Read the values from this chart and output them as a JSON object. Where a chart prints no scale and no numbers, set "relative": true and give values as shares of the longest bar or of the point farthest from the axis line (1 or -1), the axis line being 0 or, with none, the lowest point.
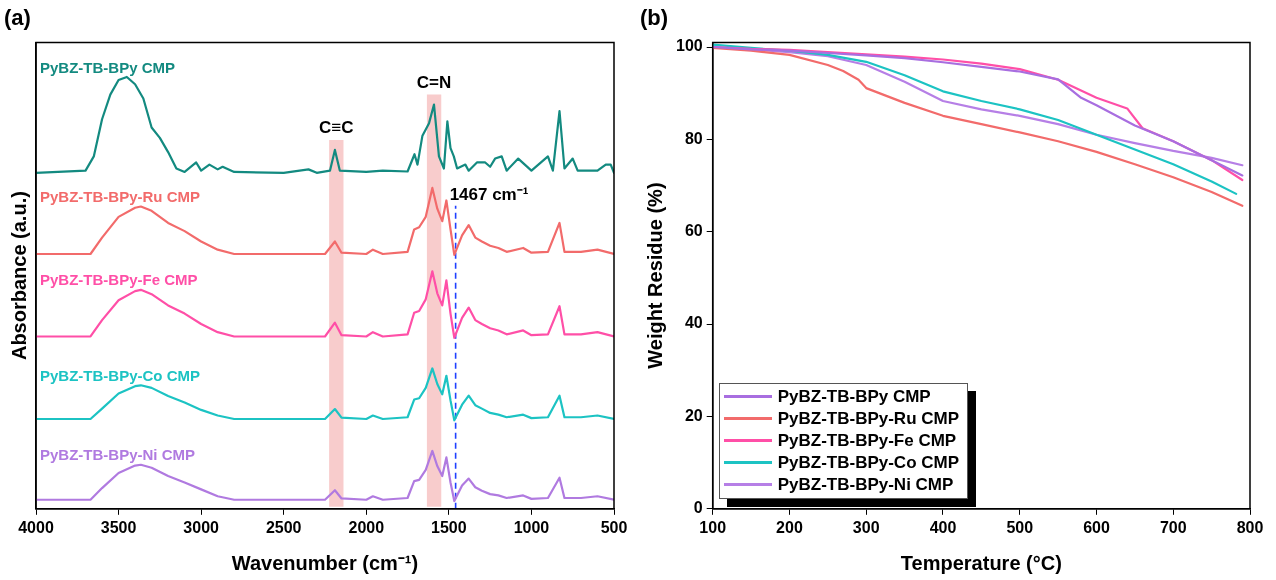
{
  "chart_data": [
    {
      "type": "line",
      "title": "(a)",
      "xlabel": "Wavenumber (cm⁻¹)",
      "ylabel": "Absorbance (a.u.)",
      "relative": true,
      "xlim": [
        4000,
        500
      ],
      "xticks": [
        4000,
        3500,
        3000,
        2500,
        2000,
        1500,
        1000,
        500
      ],
      "grid": false,
      "bands": [
        {
          "axis": "x",
          "from": 2225,
          "to": 2138,
          "label": "C≡C",
          "color": "#f8cccc"
        },
        {
          "axis": "x",
          "from": 1633,
          "to": 1546,
          "label": "C=N",
          "color": "#f8cccc"
        }
      ],
      "ref_lines": [
        {
          "axis": "x",
          "value": 1459,
          "label": "1467 cm⁻¹",
          "color": "#1f3fff",
          "line_style": "dashed"
        }
      ],
      "series": [
        {
          "name": "PyBZ-TB-BPy CMP",
          "color": "#138a80",
          "x": [
            4000,
            3700,
            3650,
            3600,
            3550,
            3500,
            3450,
            3400,
            3350,
            3300,
            3250,
            3200,
            3150,
            3100,
            3030,
            3000,
            2950,
            2900,
            2870,
            2800,
            2500,
            2350,
            2300,
            2220,
            2190,
            2160,
            2000,
            1900,
            1750,
            1708,
            1690,
            1660,
            1620,
            1590,
            1560,
            1530,
            1509,
            1490,
            1470,
            1450,
            1400,
            1380,
            1330,
            1280,
            1250,
            1220,
            1180,
            1150,
            1080,
            1040,
            1000,
            900,
            870,
            830,
            800,
            750,
            720,
            600,
            550,
            520,
            500
          ],
          "values": [
            0.778,
            0.783,
            0.816,
            0.902,
            0.959,
            0.993,
            1,
            0.983,
            0.95,
            0.883,
            0.859,
            0.826,
            0.788,
            0.78,
            0.802,
            0.783,
            0.797,
            0.786,
            0.792,
            0.78,
            0.778,
            0.786,
            0.778,
            0.783,
            0.831,
            0.783,
            0.78,
            0.783,
            0.781,
            0.821,
            0.797,
            0.864,
            0.893,
            0.936,
            0.816,
            0.788,
            0.897,
            0.835,
            0.816,
            0.788,
            0.797,
            0.783,
            0.802,
            0.802,
            0.792,
            0.811,
            0.816,
            0.783,
            0.811,
            0.797,
            0.783,
            0.816,
            0.783,
            0.921,
            0.788,
            0.811,
            0.783,
            0.783,
            0.797,
            0.797,
            0.778
          ]
        },
        {
          "name": "PyBZ-TB-BPy-Ru CMP",
          "color": "#f26b6b",
          "x": [
            4000,
            3670,
            3600,
            3500,
            3400,
            3365,
            3300,
            3200,
            3100,
            3000,
            2900,
            2800,
            2250,
            2190,
            2150,
            2000,
            1960,
            1900,
            1750,
            1710,
            1680,
            1640,
            1600,
            1570,
            1540,
            1515,
            1490,
            1467,
            1420,
            1380,
            1340,
            1300,
            1250,
            1200,
            1150,
            1050,
            1000,
            900,
            830,
            800,
            700,
            600,
            500
          ],
          "values": [
            0.59,
            0.59,
            0.628,
            0.676,
            0.697,
            0.7,
            0.69,
            0.662,
            0.643,
            0.619,
            0.6,
            0.59,
            0.59,
            0.619,
            0.593,
            0.59,
            0.6,
            0.59,
            0.595,
            0.647,
            0.652,
            0.676,
            0.743,
            0.695,
            0.666,
            0.714,
            0.647,
            0.588,
            0.633,
            0.657,
            0.628,
            0.619,
            0.609,
            0.604,
            0.595,
            0.604,
            0.593,
            0.595,
            0.662,
            0.595,
            0.595,
            0.6,
            0.59
          ]
        },
        {
          "name": "PyBZ-TB-BPy-Fe CMP",
          "color": "#ff4fa7",
          "x": [
            4000,
            3670,
            3600,
            3500,
            3400,
            3365,
            3300,
            3200,
            3100,
            3000,
            2900,
            2800,
            2250,
            2190,
            2150,
            2000,
            1960,
            1900,
            1750,
            1710,
            1680,
            1640,
            1600,
            1570,
            1540,
            1515,
            1490,
            1467,
            1420,
            1380,
            1340,
            1300,
            1250,
            1200,
            1150,
            1050,
            1000,
            900,
            830,
            800,
            700,
            600,
            500
          ],
          "values": [
            0.399,
            0.399,
            0.437,
            0.483,
            0.504,
            0.507,
            0.497,
            0.471,
            0.452,
            0.428,
            0.409,
            0.399,
            0.399,
            0.431,
            0.402,
            0.399,
            0.409,
            0.399,
            0.404,
            0.454,
            0.458,
            0.485,
            0.55,
            0.499,
            0.471,
            0.529,
            0.452,
            0.396,
            0.442,
            0.466,
            0.437,
            0.428,
            0.418,
            0.413,
            0.404,
            0.413,
            0.402,
            0.404,
            0.469,
            0.404,
            0.404,
            0.409,
            0.399
          ]
        },
        {
          "name": "PyBZ-TB-BPy-Co CMP",
          "color": "#1cc3c3",
          "x": [
            4000,
            3670,
            3600,
            3500,
            3400,
            3365,
            3300,
            3200,
            3100,
            3000,
            2900,
            2800,
            2250,
            2190,
            2150,
            2000,
            1960,
            1900,
            1750,
            1710,
            1680,
            1640,
            1600,
            1570,
            1540,
            1515,
            1490,
            1467,
            1420,
            1380,
            1340,
            1300,
            1250,
            1200,
            1150,
            1050,
            1000,
            900,
            830,
            800,
            700,
            600,
            500
          ],
          "values": [
            0.208,
            0.208,
            0.232,
            0.267,
            0.284,
            0.286,
            0.28,
            0.261,
            0.246,
            0.229,
            0.216,
            0.208,
            0.208,
            0.231,
            0.211,
            0.208,
            0.216,
            0.208,
            0.212,
            0.253,
            0.256,
            0.28,
            0.325,
            0.289,
            0.265,
            0.308,
            0.251,
            0.205,
            0.241,
            0.262,
            0.24,
            0.232,
            0.222,
            0.218,
            0.212,
            0.218,
            0.21,
            0.212,
            0.262,
            0.212,
            0.212,
            0.216,
            0.208
          ]
        },
        {
          "name": "PyBZ-TB-BPy-Ni CMP",
          "color": "#b07ae0",
          "x": [
            4000,
            3670,
            3600,
            3500,
            3400,
            3365,
            3300,
            3200,
            3100,
            3000,
            2900,
            2800,
            2250,
            2190,
            2150,
            2000,
            1960,
            1900,
            1750,
            1710,
            1680,
            1640,
            1600,
            1570,
            1540,
            1515,
            1490,
            1467,
            1420,
            1380,
            1340,
            1300,
            1250,
            1200,
            1150,
            1050,
            1000,
            900,
            830,
            800,
            700,
            600,
            500
          ],
          "values": [
            0.021,
            0.021,
            0.048,
            0.083,
            0.1,
            0.102,
            0.095,
            0.076,
            0.061,
            0.045,
            0.029,
            0.021,
            0.021,
            0.043,
            0.024,
            0.021,
            0.029,
            0.021,
            0.025,
            0.064,
            0.067,
            0.09,
            0.134,
            0.099,
            0.076,
            0.119,
            0.061,
            0.018,
            0.054,
            0.07,
            0.05,
            0.042,
            0.034,
            0.031,
            0.025,
            0.031,
            0.023,
            0.025,
            0.072,
            0.025,
            0.025,
            0.029,
            0.021
          ]
        }
      ]
    },
    {
      "type": "line",
      "title": "(b)",
      "xlabel": "Temperature (°C)",
      "ylabel": "Weight Residue (%)",
      "xlim": [
        100,
        800
      ],
      "xticks": [
        100,
        200,
        300,
        400,
        500,
        600,
        700,
        800
      ],
      "ylim": [
        0,
        101
      ],
      "yticks": [
        0,
        20,
        40,
        60,
        80,
        100
      ],
      "grid": false,
      "legend": "bottom left",
      "series": [
        {
          "name": "PyBZ-TB-BPy CMP",
          "color": "#a86ee0",
          "x": [
            100,
            150,
            200,
            250,
            300,
            350,
            400,
            450,
            500,
            550,
            580,
            600,
            650,
            700,
            750,
            790
          ],
          "values": [
            100,
            99.5,
            99.2,
            98.7,
            98.2,
            97.6,
            96.7,
            95.7,
            94.7,
            93,
            89,
            87.4,
            83,
            79.6,
            75.5,
            72.2
          ]
        },
        {
          "name": "PyBZ-TB-BPy-Ru CMP",
          "color": "#f26b6b",
          "x": [
            100,
            150,
            200,
            250,
            270,
            290,
            300,
            350,
            400,
            450,
            500,
            550,
            600,
            650,
            700,
            750,
            790
          ],
          "values": [
            99.8,
            99.2,
            98.3,
            96.1,
            94.8,
            92.9,
            91.1,
            87.9,
            85.1,
            83.3,
            81.5,
            79.6,
            77.3,
            74.6,
            71.8,
            68.6,
            65.6
          ]
        },
        {
          "name": "PyBZ-TB-BPy-Fe CMP",
          "color": "#ff4fa7",
          "x": [
            100,
            150,
            200,
            250,
            300,
            350,
            400,
            450,
            500,
            550,
            600,
            640,
            660,
            700,
            750,
            790
          ],
          "values": [
            100,
            99.6,
            99.4,
            98.9,
            98.4,
            97.9,
            97.3,
            96.4,
            95.2,
            92.9,
            89,
            86.7,
            82.4,
            79.6,
            75.5,
            71.2
          ]
        },
        {
          "name": "PyBZ-TB-BPy-Co CMP",
          "color": "#1cc3c3",
          "x": [
            100,
            150,
            200,
            250,
            300,
            350,
            400,
            450,
            500,
            550,
            600,
            650,
            700,
            750,
            782
          ],
          "values": [
            100.5,
            99.8,
            99.2,
            98.3,
            96.8,
            93.9,
            90.4,
            88.3,
            86.5,
            84.2,
            81,
            77.8,
            74.6,
            70.9,
            68.2
          ]
        },
        {
          "name": "PyBZ-TB-BPy-Ni CMP",
          "color": "#b67fe6",
          "x": [
            100,
            150,
            200,
            250,
            300,
            350,
            400,
            450,
            500,
            550,
            600,
            650,
            700,
            750,
            790
          ],
          "values": [
            100,
            99.5,
            98.9,
            98,
            96.1,
            92.5,
            88.3,
            86.5,
            85.1,
            83.3,
            81,
            79.2,
            77.5,
            76,
            74.4
          ]
        }
      ]
    }
  ]
}
